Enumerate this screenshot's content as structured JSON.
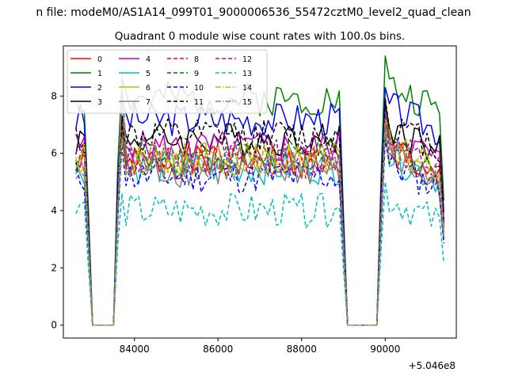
{
  "chart_data": {
    "type": "line",
    "suptitle": "n file: modeM0/AS1A14_099T01_9000006536_55472cztM0_level2_quad_clean",
    "title": "Quadrant 0 module wise count rates with 100.0s bins.",
    "xlabel": "",
    "ylabel": "",
    "x_offset_label": "+5.046e8",
    "xlim": [
      82300,
      91700
    ],
    "ylim": [
      -0.45,
      9.75
    ],
    "xticks": [
      84000,
      86000,
      88000,
      90000
    ],
    "xtick_labels": [
      "84000",
      "86000",
      "88000",
      "90000"
    ],
    "yticks": [
      0,
      2,
      4,
      6,
      8
    ],
    "ytick_labels": [
      "0",
      "2",
      "4",
      "6",
      "8"
    ],
    "legend_position": "top-left",
    "legend_columns": 4,
    "x": [
      82600,
      82700,
      82800,
      82900,
      83000,
      83100,
      83200,
      83300,
      83400,
      83500,
      83600,
      83700,
      83800,
      83900,
      84000,
      84100,
      84200,
      84300,
      84400,
      84500,
      84600,
      84700,
      84800,
      84900,
      85000,
      85100,
      85200,
      85300,
      85400,
      85500,
      85600,
      85700,
      85800,
      85900,
      86000,
      86100,
      86200,
      86300,
      86400,
      86500,
      86600,
      86700,
      86800,
      86900,
      87000,
      87100,
      87200,
      87300,
      87400,
      87500,
      87600,
      87700,
      87800,
      87900,
      88000,
      88100,
      88200,
      88300,
      88400,
      88500,
      88600,
      88700,
      88800,
      88900,
      89000,
      89100,
      89200,
      89300,
      89400,
      89500,
      89600,
      89700,
      89800,
      89900,
      90000,
      90100,
      90200,
      90300,
      90400,
      90500,
      90600,
      90700,
      90800,
      90900,
      91000,
      91100,
      91200,
      91300,
      91400
    ],
    "series": [
      {
        "name": "0",
        "color": "#ff0000",
        "dash": "solid",
        "level": 5.7,
        "peak": 7.3,
        "peak2": 7.9,
        "seed": 1
      },
      {
        "name": "1",
        "color": "#008000",
        "dash": "solid",
        "level": 7.9,
        "peak": 8.6,
        "peak2": 9.4,
        "seed": 2
      },
      {
        "name": "2",
        "color": "#0000ff",
        "dash": "solid",
        "level": 7.2,
        "peak": 7.8,
        "peak2": 8.3,
        "seed": 3
      },
      {
        "name": "3",
        "color": "#000000",
        "dash": "solid",
        "level": 6.5,
        "peak": 7.3,
        "peak2": 7.7,
        "seed": 4
      },
      {
        "name": "4",
        "color": "#bf00bf",
        "dash": "solid",
        "level": 6.2,
        "peak": 6.9,
        "peak2": 7.4,
        "seed": 5
      },
      {
        "name": "5",
        "color": "#00bfbf",
        "dash": "solid",
        "level": 5.5,
        "peak": 6.5,
        "peak2": 6.7,
        "seed": 6
      },
      {
        "name": "6",
        "color": "#bfbf00",
        "dash": "solid",
        "level": 5.8,
        "peak": 6.8,
        "peak2": 7.0,
        "seed": 7
      },
      {
        "name": "7",
        "color": "#808080",
        "dash": "solid",
        "level": 5.4,
        "peak": 8.4,
        "peak2": 7.1,
        "seed": 8
      },
      {
        "name": "8",
        "color": "#ff0000",
        "dash": "dashed",
        "level": 5.7,
        "peak": 6.9,
        "peak2": 7.0,
        "seed": 9
      },
      {
        "name": "9",
        "color": "#008000",
        "dash": "dashed",
        "level": 5.9,
        "peak": 6.7,
        "peak2": 7.3,
        "seed": 10
      },
      {
        "name": "10",
        "color": "#0000ff",
        "dash": "dashed",
        "level": 5.2,
        "peak": 6.3,
        "peak2": 6.5,
        "seed": 11
      },
      {
        "name": "11",
        "color": "#000000",
        "dash": "dashed",
        "level": 6.6,
        "peak": 7.0,
        "peak2": 7.9,
        "seed": 12
      },
      {
        "name": "12",
        "color": "#bf00bf",
        "dash": "dashed",
        "level": 5.9,
        "peak": 6.6,
        "peak2": 7.1,
        "seed": 13
      },
      {
        "name": "13",
        "color": "#00bfbf",
        "dash": "dashed",
        "level": 4.0,
        "peak": 4.6,
        "peak2": 5.0,
        "seed": 14
      },
      {
        "name": "14",
        "color": "#bfbf00",
        "dash": "dashdot",
        "level": 5.8,
        "peak": 6.5,
        "peak2": 7.2,
        "seed": 15
      },
      {
        "name": "15",
        "color": "#808080",
        "dash": "dashdot",
        "level": 5.6,
        "peak": 8.8,
        "peak2": 7.0,
        "seed": 16
      }
    ]
  }
}
